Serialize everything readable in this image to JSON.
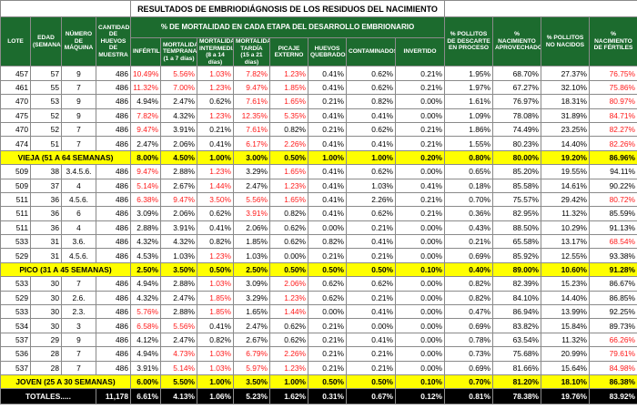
{
  "title": "RESULTADOS DE EMBRIODIÁGNOSIS DE LOS RESIDUOS DEL NACIMIENTO",
  "group_header": "% DE MORTALIDAD EN CADA ETAPA DEL DESARROLLO EMBRIONARIO",
  "headers": {
    "lote": "LOTE",
    "edad": "EDAD (SEMANAS)",
    "maquina": "NÚMERO DE MÁQUINA",
    "cantidad": "CANTIDAD DE HUEVOS DE MUESTRA",
    "infertiles": "INFÉRTILES",
    "temprana": "MORTALIDAD TEMPRANA (1 a 7 días)",
    "intermedia": "MORTALIDAD INTERMEDIA (8 a 14 días)",
    "tardia": "MORTALIDAD TARDÍA (15 a 21 días)",
    "picaje": "PICAJE EXTERNO",
    "quebrados": "HUEVOS QUEBRADOS",
    "contaminados": "CONTAMINADOS",
    "invertido": "INVERTIDO",
    "descarte": "% POLLITOS DE DESCARTE EN PROCESO",
    "aprovechado": "% NACIMIENTO APROVECHADO",
    "no_nacidos": "% POLLITOS NO NACIDOS",
    "fertiles": "% NACIMIENTO DE FÉRTILES"
  },
  "sections": [
    {
      "rows": [
        [
          "457",
          "57",
          "9",
          "486",
          "10.49%",
          "5.56%",
          "1.03%",
          "7.82%",
          "1.23%",
          "0.41%",
          "0.62%",
          "0.21%",
          "1.95%",
          "68.70%",
          "27.37%",
          "76.75%"
        ],
        [
          "461",
          "55",
          "7",
          "486",
          "11.32%",
          "7.00%",
          "1.23%",
          "9.47%",
          "1.85%",
          "0.41%",
          "0.62%",
          "0.21%",
          "1.97%",
          "67.27%",
          "32.10%",
          "75.86%"
        ],
        [
          "470",
          "53",
          "9",
          "486",
          "4.94%",
          "2.47%",
          "0.62%",
          "7.61%",
          "1.65%",
          "0.21%",
          "0.82%",
          "0.00%",
          "1.61%",
          "76.97%",
          "18.31%",
          "80.97%"
        ],
        [
          "475",
          "52",
          "9",
          "486",
          "7.82%",
          "4.32%",
          "1.23%",
          "12.35%",
          "5.35%",
          "0.41%",
          "0.41%",
          "0.00%",
          "1.09%",
          "78.08%",
          "31.89%",
          "84.71%"
        ],
        [
          "470",
          "52",
          "7",
          "486",
          "9.47%",
          "3.91%",
          "0.21%",
          "7.61%",
          "0.82%",
          "0.21%",
          "0.62%",
          "0.21%",
          "1.86%",
          "74.49%",
          "23.25%",
          "82.27%"
        ],
        [
          "474",
          "51",
          "7",
          "486",
          "2.47%",
          "2.06%",
          "0.41%",
          "6.17%",
          "2.26%",
          "0.41%",
          "0.41%",
          "0.21%",
          "1.55%",
          "80.23%",
          "14.40%",
          "82.26%"
        ]
      ],
      "summary": [
        "VIEJA (51 A 64 SEMANAS)",
        "8.00%",
        "4.50%",
        "1.00%",
        "3.00%",
        "0.50%",
        "1.00%",
        "1.00%",
        "0.20%",
        "0.80%",
        "80.00%",
        "19.20%",
        "86.96%"
      ]
    },
    {
      "rows": [
        [
          "509",
          "38",
          "3.4.5.6.",
          "486",
          "9.47%",
          "2.88%",
          "1.23%",
          "3.29%",
          "1.65%",
          "0.41%",
          "0.62%",
          "0.00%",
          "0.65%",
          "85.20%",
          "19.55%",
          "94.11%"
        ],
        [
          "509",
          "37",
          "4",
          "486",
          "5.14%",
          "2.67%",
          "1.44%",
          "2.47%",
          "1.23%",
          "0.41%",
          "1.03%",
          "0.41%",
          "0.18%",
          "85.58%",
          "14.61%",
          "90.22%"
        ],
        [
          "511",
          "36",
          "4.5.6.",
          "486",
          "6.38%",
          "9.47%",
          "3.50%",
          "5.56%",
          "1.65%",
          "0.41%",
          "2.26%",
          "0.21%",
          "0.70%",
          "75.57%",
          "29.42%",
          "80.72%"
        ],
        [
          "511",
          "36",
          "6",
          "486",
          "3.09%",
          "2.06%",
          "0.62%",
          "3.91%",
          "0.82%",
          "0.41%",
          "0.62%",
          "0.21%",
          "0.36%",
          "82.95%",
          "11.32%",
          "85.59%"
        ],
        [
          "511",
          "36",
          "4",
          "486",
          "2.88%",
          "3.91%",
          "0.41%",
          "2.06%",
          "0.62%",
          "0.00%",
          "0.21%",
          "0.00%",
          "0.43%",
          "88.50%",
          "10.29%",
          "91.13%"
        ],
        [
          "533",
          "31",
          "3.6.",
          "486",
          "4.32%",
          "4.32%",
          "0.82%",
          "1.85%",
          "0.62%",
          "0.82%",
          "0.41%",
          "0.00%",
          "0.21%",
          "65.58%",
          "13.17%",
          "68.54%"
        ],
        [
          "529",
          "31",
          "4.5.6.",
          "486",
          "4.53%",
          "1.03%",
          "1.23%",
          "1.03%",
          "0.00%",
          "0.21%",
          "0.21%",
          "0.00%",
          "0.69%",
          "85.92%",
          "12.55%",
          "93.38%"
        ]
      ],
      "summary": [
        "PICO (31 A 45 SEMANAS)",
        "2.50%",
        "3.50%",
        "0.50%",
        "2.50%",
        "0.50%",
        "0.50%",
        "0.50%",
        "0.10%",
        "0.40%",
        "89.00%",
        "10.60%",
        "91.28%"
      ]
    },
    {
      "rows": [
        [
          "533",
          "30",
          "7",
          "486",
          "4.94%",
          "2.88%",
          "1.03%",
          "3.09%",
          "2.06%",
          "0.62%",
          "0.62%",
          "0.00%",
          "0.82%",
          "82.39%",
          "15.23%",
          "86.67%"
        ],
        [
          "529",
          "30",
          "2.6.",
          "486",
          "4.32%",
          "2.47%",
          "1.85%",
          "3.29%",
          "1.23%",
          "0.62%",
          "0.21%",
          "0.00%",
          "0.82%",
          "84.10%",
          "14.40%",
          "86.85%"
        ],
        [
          "533",
          "30",
          "2.3.",
          "486",
          "5.76%",
          "2.88%",
          "1.85%",
          "1.65%",
          "1.44%",
          "0.00%",
          "0.41%",
          "0.00%",
          "0.47%",
          "86.94%",
          "13.99%",
          "92.25%"
        ],
        [
          "534",
          "30",
          "3",
          "486",
          "6.58%",
          "5.56%",
          "0.41%",
          "2.47%",
          "0.62%",
          "0.21%",
          "0.00%",
          "0.00%",
          "0.69%",
          "83.82%",
          "15.84%",
          "89.73%"
        ],
        [
          "537",
          "29",
          "9",
          "486",
          "4.12%",
          "2.47%",
          "0.82%",
          "2.67%",
          "0.62%",
          "0.21%",
          "0.41%",
          "0.00%",
          "0.78%",
          "63.54%",
          "11.32%",
          "66.26%"
        ],
        [
          "536",
          "28",
          "7",
          "486",
          "4.94%",
          "4.73%",
          "1.03%",
          "6.79%",
          "2.26%",
          "0.21%",
          "0.21%",
          "0.00%",
          "0.73%",
          "75.68%",
          "20.99%",
          "79.61%"
        ],
        [
          "537",
          "28",
          "7",
          "486",
          "3.91%",
          "5.14%",
          "1.03%",
          "5.97%",
          "1.23%",
          "0.21%",
          "0.21%",
          "0.00%",
          "0.69%",
          "81.66%",
          "15.64%",
          "84.98%"
        ]
      ],
      "summary": [
        "JOVEN (25 A 30 SEMANAS)",
        "6.00%",
        "5.50%",
        "1.00%",
        "3.50%",
        "1.00%",
        "0.50%",
        "0.50%",
        "0.10%",
        "0.70%",
        "81.20%",
        "18.10%",
        "86.38%"
      ]
    }
  ],
  "totals": [
    "TOTALES.....",
    "11,178",
    "6.61%",
    "4.13%",
    "1.06%",
    "5.23%",
    "1.62%",
    "0.31%",
    "0.67%",
    "0.12%",
    "0.81%",
    "78.38%",
    "19.76%",
    "83.92%"
  ],
  "colors": {
    "header_bg": "#1c6b2e",
    "summary_bg": "#ffff00",
    "totals_bg": "#000000",
    "alert_text": "#ff1a1a"
  }
}
